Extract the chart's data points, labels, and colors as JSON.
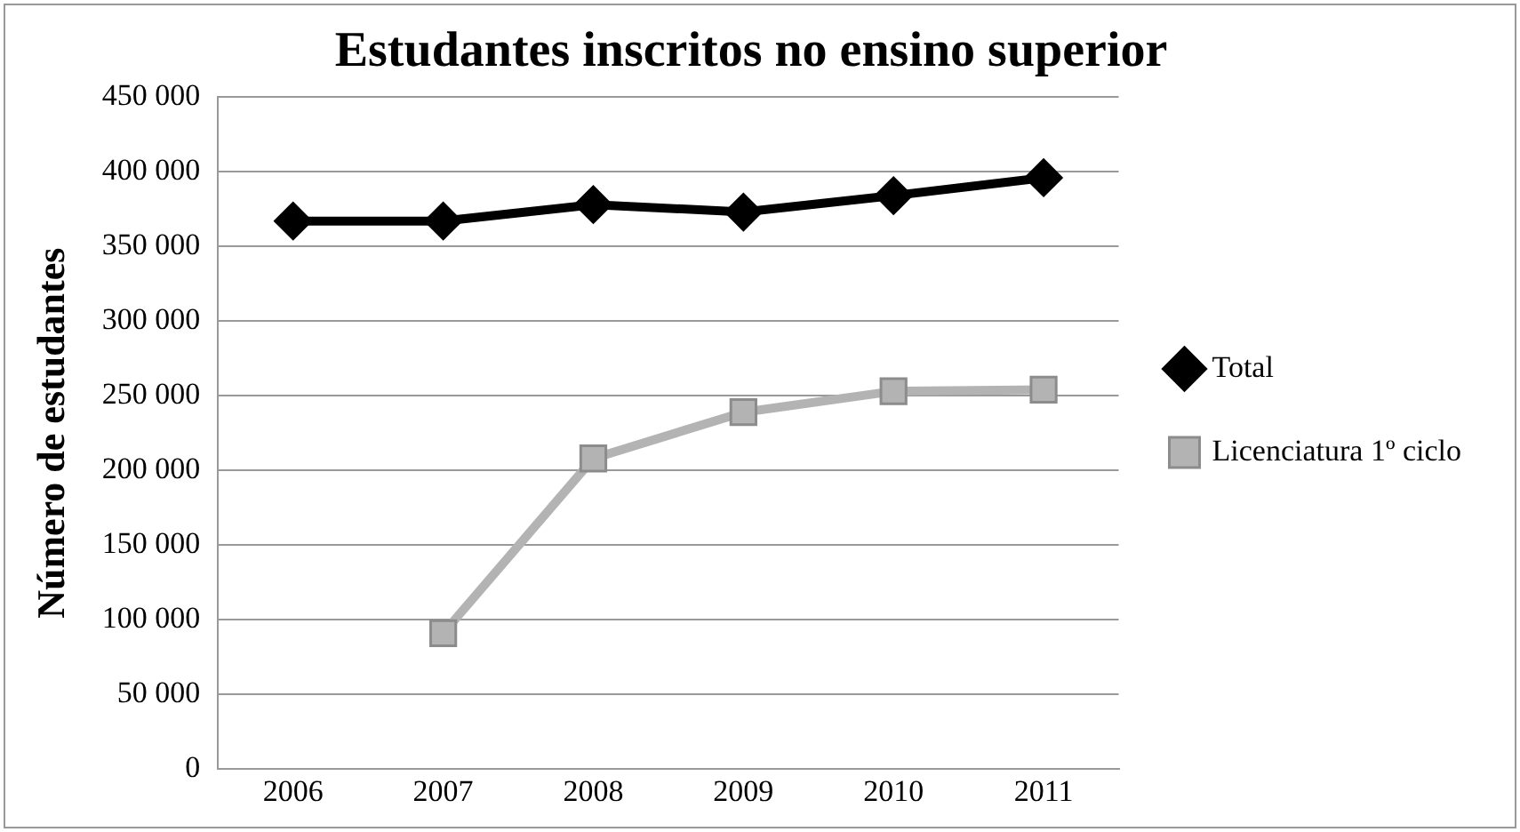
{
  "chart_data": {
    "type": "line",
    "title": "Estudantes inscritos no ensino superior",
    "ylabel": "Número de estudantes",
    "categories": [
      "2006",
      "2007",
      "2008",
      "2009",
      "2010",
      "2011"
    ],
    "series": [
      {
        "name": "Total",
        "color": "#000000",
        "marker": "diamond",
        "values": [
          367000,
          367000,
          378000,
          373000,
          384000,
          396000
        ]
      },
      {
        "name": "Licenciatura 1º ciclo",
        "color": "#b3b3b3",
        "marker": "square",
        "values": [
          null,
          91000,
          208000,
          239000,
          253000,
          254000
        ]
      }
    ],
    "ylim": [
      0,
      450000
    ],
    "yticks": [
      0,
      50000,
      100000,
      150000,
      200000,
      250000,
      300000,
      350000,
      400000,
      450000
    ],
    "grid": "y",
    "legend": "right"
  }
}
